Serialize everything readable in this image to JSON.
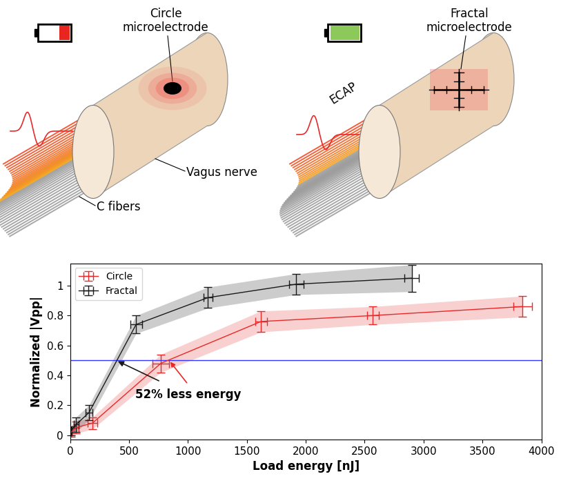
{
  "diagram": {
    "left_panel": {
      "electrode_label": "Circle\nmicroelectrode",
      "fiber_label": "C fibers",
      "nerve_label": "Vagus nerve"
    },
    "right_panel": {
      "electrode_label": "Fractal\nmicroelectrode",
      "signal_label": "ECAP"
    }
  },
  "chart_data": {
    "type": "line",
    "x_label": "Load energy [nJ]",
    "y_label": "Normalized |Vpp|",
    "xlim": [
      0,
      4000
    ],
    "xticks": [
      0,
      500,
      1000,
      1500,
      2000,
      2500,
      3000,
      3500,
      4000
    ],
    "ylim": [
      -0.03,
      1.15
    ],
    "yticks": [
      0,
      0.2,
      0.4,
      0.6,
      0.8,
      1
    ],
    "legend": "upper left",
    "grid": false,
    "threshold": 0.5,
    "annotation": {
      "text": "52% less energy",
      "x": [
        390,
        840
      ]
    },
    "series": [
      {
        "name": "Circle",
        "color": "#e8292a",
        "x": [
          10,
          50,
          190,
          770,
          1620,
          2570,
          3840
        ],
        "values": [
          0.02,
          0.05,
          0.08,
          0.48,
          0.76,
          0.8,
          0.86
        ],
        "y_error": [
          0.03,
          0.04,
          0.04,
          0.06,
          0.07,
          0.06,
          0.07
        ],
        "x_error": [
          5,
          20,
          40,
          70,
          50,
          50,
          80
        ]
      },
      {
        "name": "Fractal",
        "color": "#1a1a1a",
        "x": [
          10,
          50,
          160,
          560,
          1170,
          1920,
          2900
        ],
        "values": [
          0.03,
          0.07,
          0.15,
          0.74,
          0.92,
          1.01,
          1.05
        ],
        "y_error": [
          0.03,
          0.05,
          0.05,
          0.06,
          0.07,
          0.07,
          0.09
        ],
        "x_error": [
          5,
          20,
          30,
          50,
          40,
          60,
          60
        ]
      }
    ]
  }
}
